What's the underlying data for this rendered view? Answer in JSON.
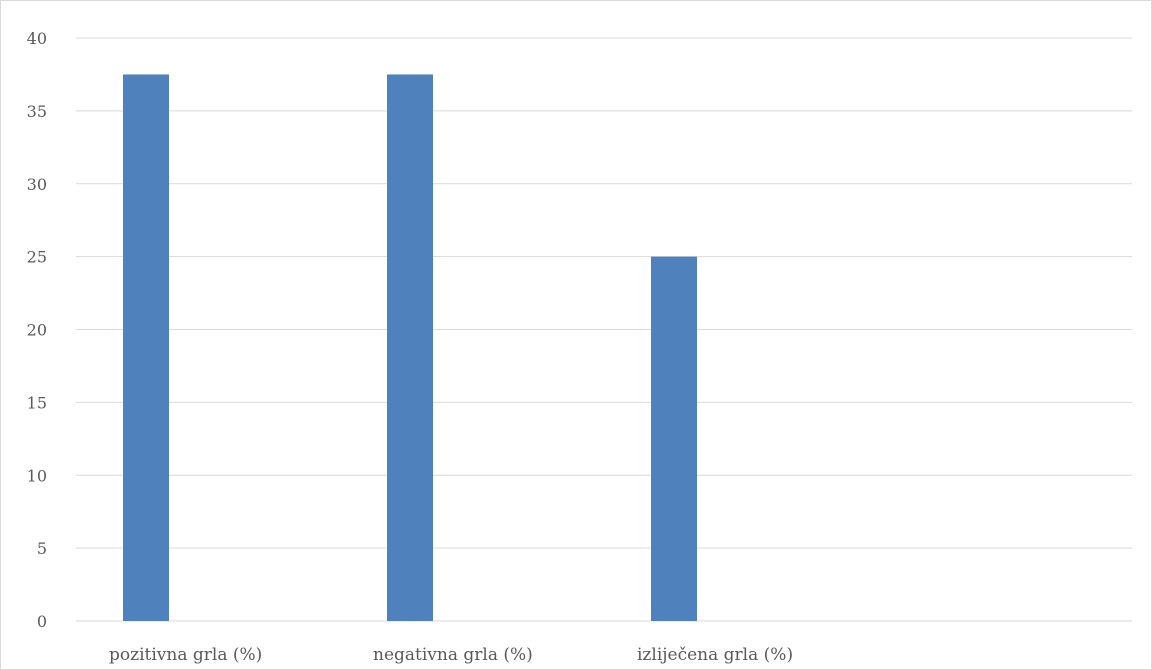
{
  "chart_data": {
    "type": "bar",
    "categories": [
      "pozitivna grla (%)",
      "negativna grla (%)",
      "izliječena grla (%)",
      ""
    ],
    "values": [
      37.5,
      37.5,
      25,
      null
    ],
    "ylim": [
      0,
      40
    ],
    "yticks": [
      0,
      5,
      10,
      15,
      20,
      25,
      30,
      35,
      40
    ],
    "title": "",
    "xlabel": "",
    "ylabel": "",
    "grid": true,
    "legend": "none",
    "colors": {
      "bar": "#4f81bd",
      "grid": "#d9d9d9",
      "text": "#595959",
      "frame": "#d9d9d9"
    }
  }
}
